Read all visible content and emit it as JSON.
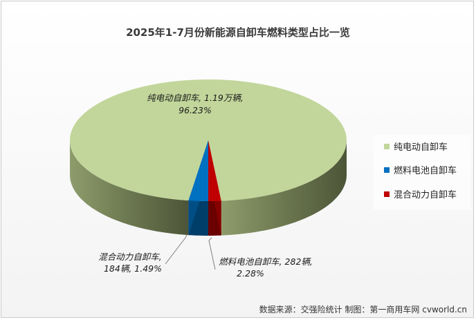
{
  "chart_data": {
    "type": "pie",
    "title": "2025年1-7月份新能源自卸车燃料类型占比一览",
    "slices": [
      {
        "name": "纯电动自卸车",
        "value_text": "1.19万辆",
        "percent": 96.23,
        "color": "#c2d69b",
        "label_line1": "纯电动自卸车, 1.19万辆,",
        "label_line2": "96.23%"
      },
      {
        "name": "燃料电池自卸车",
        "value": 282,
        "percent": 2.28,
        "color": "#0070c0",
        "label_line1": "燃料电池自卸车, 282辆,",
        "label_line2": "2.28%"
      },
      {
        "name": "混合动力自卸车",
        "value": 184,
        "percent": 1.49,
        "color": "#c00000",
        "label_line1": "混合动力自卸车,",
        "label_line2": "184辆, 1.49%"
      }
    ],
    "legend": {
      "position": "right",
      "items": [
        "纯电动自卸车",
        "燃料电池自卸车",
        "混合动力自卸车"
      ]
    },
    "source": "数据来源：交强险统计 制图：第一商用车网 cvworld.cn"
  }
}
